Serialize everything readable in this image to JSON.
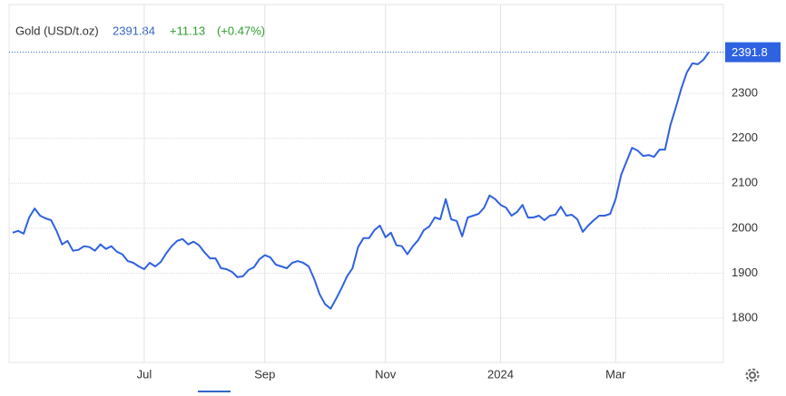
{
  "header": {
    "title": "Gold (USD/t.oz)",
    "price": "2391.84",
    "change": "+11.13",
    "change_pct": "(+0.47%)"
  },
  "chart_data": {
    "type": "line",
    "categories": [
      null,
      null,
      null,
      null,
      null,
      null,
      null,
      null,
      null,
      null,
      null,
      null,
      null,
      null,
      null,
      null,
      null,
      null,
      null,
      null,
      null,
      null,
      null,
      null,
      "Jul",
      null,
      null,
      null,
      null,
      null,
      null,
      null,
      null,
      null,
      null,
      null,
      null,
      null,
      null,
      null,
      null,
      null,
      null,
      null,
      null,
      null,
      "Sep",
      null,
      null,
      null,
      null,
      null,
      null,
      null,
      null,
      null,
      null,
      null,
      null,
      null,
      null,
      null,
      null,
      null,
      null,
      null,
      null,
      null,
      "Nov",
      null,
      null,
      null,
      null,
      null,
      null,
      null,
      null,
      null,
      null,
      null,
      null,
      null,
      null,
      null,
      null,
      null,
      null,
      null,
      null,
      "2024",
      null,
      null,
      null,
      null,
      null,
      null,
      null,
      null,
      null,
      null,
      null,
      null,
      null,
      null,
      null,
      null,
      null,
      null,
      null,
      null,
      "Mar",
      null,
      null,
      null,
      null,
      null,
      null,
      null,
      null,
      null,
      null,
      null,
      null,
      null,
      null,
      null,
      null,
      null
    ],
    "series": [
      {
        "name": "Gold",
        "color": "#2f62e0",
        "values": [
          1990,
          1994,
          1988,
          2024,
          2044,
          2028,
          2022,
          2018,
          1994,
          1964,
          1972,
          1950,
          1952,
          1960,
          1958,
          1950,
          1964,
          1954,
          1960,
          1948,
          1942,
          1927,
          1923,
          1915,
          1909,
          1923,
          1915,
          1925,
          1944,
          1960,
          1972,
          1976,
          1964,
          1970,
          1962,
          1946,
          1933,
          1933,
          1911,
          1909,
          1903,
          1891,
          1893,
          1907,
          1913,
          1931,
          1940,
          1935,
          1919,
          1915,
          1911,
          1923,
          1927,
          1923,
          1915,
          1887,
          1853,
          1831,
          1821,
          1843,
          1867,
          1893,
          1911,
          1958,
          1978,
          1978,
          1996,
          2006,
          1980,
          1990,
          1962,
          1960,
          1942,
          1960,
          1974,
          1996,
          2004,
          2024,
          2020,
          2065,
          2020,
          2016,
          1982,
          2024,
          2028,
          2032,
          2046,
          2073,
          2065,
          2052,
          2046,
          2028,
          2036,
          2052,
          2024,
          2024,
          2028,
          2018,
          2028,
          2030,
          2048,
          2028,
          2030,
          2020,
          1992,
          2006,
          2018,
          2028,
          2028,
          2032,
          2065,
          2119,
          2149,
          2179,
          2173,
          2161,
          2163,
          2159,
          2175,
          2175,
          2230,
          2270,
          2312,
          2347,
          2367,
          2365,
          2375,
          2391.84
        ]
      }
    ],
    "last_label": "2391.8",
    "ylim": [
      1700,
      2500
    ],
    "yticks": [
      1800,
      1900,
      2000,
      2100,
      2200,
      2300
    ],
    "grid": true
  }
}
